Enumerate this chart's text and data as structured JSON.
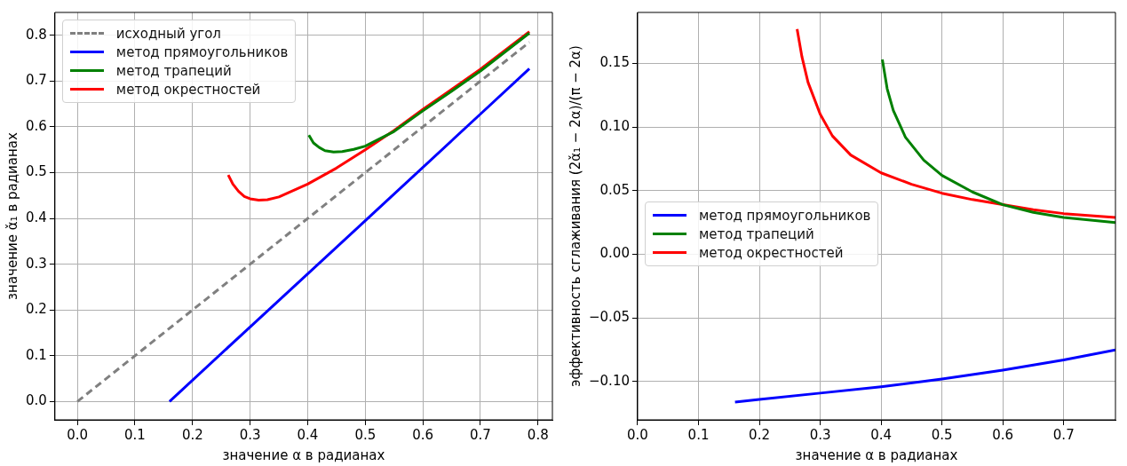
{
  "chart_data": [
    {
      "type": "line",
      "xlabel": "значение α в радианах",
      "ylabel": "значение α̌₁ в радианах",
      "xlim": [
        -0.039,
        0.825
      ],
      "ylim": [
        -0.04,
        0.85
      ],
      "xticks": [
        {
          "value": 0,
          "label": "0.0"
        },
        0.1,
        0.2,
        0.3,
        0.4,
        0.5,
        0.6,
        0.7,
        0.8
      ],
      "yticks": [
        {
          "value": 0,
          "label": "0.0"
        },
        0.1,
        0.2,
        0.3,
        0.4,
        0.5,
        0.6,
        0.7,
        0.8
      ],
      "grid": true,
      "legend": "top left",
      "marker": "none",
      "series": [
        {
          "name": "исходный угол",
          "color": "#808080",
          "line_style": "dashed",
          "x": [
            0,
            0.785
          ],
          "values": [
            0,
            0.785
          ]
        },
        {
          "name": "метод прямоугольников",
          "color": "#0000ff",
          "x": [
            0.16,
            0.3,
            0.5,
            0.7,
            0.785
          ],
          "values": [
            0,
            0.163,
            0.395,
            0.628,
            0.727
          ]
        },
        {
          "name": "метод трапеций",
          "color": "#008000",
          "x": [
            0.402,
            0.41,
            0.42,
            0.43,
            0.445,
            0.46,
            0.48,
            0.5,
            0.55,
            0.6,
            0.65,
            0.7,
            0.785
          ],
          "values": [
            0.582,
            0.565,
            0.555,
            0.548,
            0.545,
            0.546,
            0.551,
            0.558,
            0.59,
            0.635,
            0.678,
            0.722,
            0.805
          ]
        },
        {
          "name": "метод окрестностей",
          "color": "#ff0000",
          "x": [
            0.262,
            0.27,
            0.28,
            0.29,
            0.3,
            0.315,
            0.33,
            0.35,
            0.4,
            0.45,
            0.5,
            0.55,
            0.6,
            0.65,
            0.7,
            0.785
          ],
          "values": [
            0.495,
            0.475,
            0.459,
            0.448,
            0.443,
            0.44,
            0.441,
            0.447,
            0.475,
            0.51,
            0.55,
            0.592,
            0.638,
            0.682,
            0.726,
            0.808
          ]
        }
      ]
    },
    {
      "type": "line",
      "xlabel": "значение α в радианах",
      "ylabel": "эффективность сглаживания (2α̌₁ − 2α)/(π − 2α)",
      "xlim": [
        0,
        0.785
      ],
      "ylim": [
        -0.13,
        0.19
      ],
      "xticks": [
        {
          "value": 0,
          "label": "0.0"
        },
        0.1,
        0.2,
        0.3,
        0.4,
        0.5,
        0.6,
        0.7
      ],
      "yticks": [
        {
          "value": -0.1,
          "label": "−0.10"
        },
        {
          "value": -0.05,
          "label": "−0.05"
        },
        {
          "value": 0,
          "label": "0.00"
        },
        {
          "value": 0.05,
          "label": "0.05"
        },
        {
          "value": 0.1,
          "label": "0.10"
        },
        {
          "value": 0.15,
          "label": "0.15"
        }
      ],
      "grid": true,
      "legend": "left",
      "marker": "none",
      "series": [
        {
          "name": "метод прямоугольников",
          "color": "#0000ff",
          "x": [
            0.16,
            0.2,
            0.3,
            0.4,
            0.5,
            0.6,
            0.7,
            0.785
          ],
          "values": [
            -0.116,
            -0.114,
            -0.109,
            -0.104,
            -0.098,
            -0.091,
            -0.083,
            -0.075
          ]
        },
        {
          "name": "метод трапеций",
          "color": "#008000",
          "x": [
            0.402,
            0.41,
            0.42,
            0.44,
            0.47,
            0.5,
            0.55,
            0.6,
            0.65,
            0.7,
            0.785
          ],
          "values": [
            0.153,
            0.13,
            0.113,
            0.092,
            0.074,
            0.062,
            0.049,
            0.039,
            0.033,
            0.029,
            0.025
          ]
        },
        {
          "name": "метод окрестностей",
          "color": "#ff0000",
          "x": [
            0.262,
            0.27,
            0.28,
            0.3,
            0.32,
            0.35,
            0.4,
            0.45,
            0.5,
            0.55,
            0.6,
            0.65,
            0.7,
            0.785
          ],
          "values": [
            0.177,
            0.155,
            0.135,
            0.11,
            0.093,
            0.078,
            0.064,
            0.055,
            0.048,
            0.043,
            0.039,
            0.035,
            0.032,
            0.029
          ]
        }
      ]
    }
  ]
}
